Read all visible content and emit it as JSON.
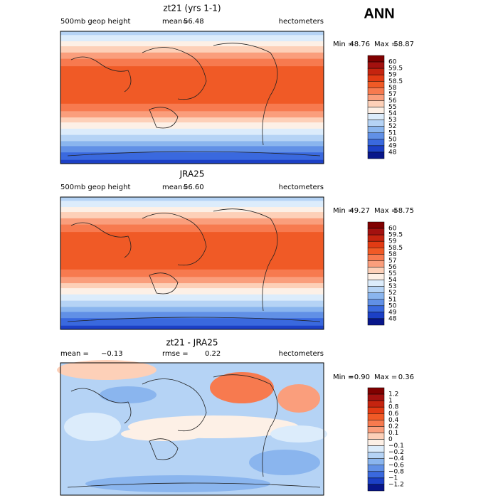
{
  "header": {
    "label": "ANN"
  },
  "panels": [
    {
      "title": "zt21 (yrs 1-1)",
      "left": "500mb geop height",
      "mean_label": "mean=",
      "mean": "56.48",
      "units": "hectometers",
      "min_label": "Min =",
      "min": "48.76",
      "max_label": "Max =",
      "max": "58.87",
      "colorbar": {
        "labels": [
          "60",
          "59.5",
          "59",
          "58.5",
          "58",
          "57",
          "56",
          "55",
          "54",
          "53",
          "52",
          "51",
          "50",
          "49",
          "48"
        ],
        "colors": [
          "#800000",
          "#a3110f",
          "#c5240f",
          "#e23b14",
          "#f05a26",
          "#f77a4f",
          "#fa9e7c",
          "#fdd0b8",
          "#fdf0e6",
          "#dcecfb",
          "#b5d3f5",
          "#8ab5ee",
          "#6190e6",
          "#3a69de",
          "#1c40c6",
          "#08168a"
        ]
      }
    },
    {
      "title": "JRA25",
      "left": "500mb geop height",
      "mean_label": "mean=",
      "mean": "56.60",
      "units": "hectometers",
      "min_label": "Min =",
      "min": "49.27",
      "max_label": "Max =",
      "max": "58.75",
      "colorbar": {
        "labels": [
          "60",
          "59.5",
          "59",
          "58.5",
          "58",
          "57",
          "56",
          "55",
          "54",
          "53",
          "52",
          "51",
          "50",
          "49",
          "48"
        ],
        "colors": [
          "#800000",
          "#a3110f",
          "#c5240f",
          "#e23b14",
          "#f05a26",
          "#f77a4f",
          "#fa9e7c",
          "#fdd0b8",
          "#fdf0e6",
          "#dcecfb",
          "#b5d3f5",
          "#8ab5ee",
          "#6190e6",
          "#3a69de",
          "#1c40c6",
          "#08168a"
        ]
      }
    },
    {
      "title": "zt21 - JRA25",
      "left_label": "mean =",
      "left_value": "−0.13",
      "mid_label": "rmse =",
      "mid_value": "0.22",
      "units": "hectometers",
      "min_label": "Min =",
      "min": "−0.90",
      "max_label": "Max =",
      "max": "0.36",
      "colorbar": {
        "labels": [
          "1.2",
          "1",
          "0.8",
          "0.6",
          "0.4",
          "0.2",
          "0.1",
          "0",
          "−0.1",
          "−0.2",
          "−0.4",
          "−0.6",
          "−0.8",
          "−1",
          "−1.2"
        ],
        "colors": [
          "#800000",
          "#a3110f",
          "#c5240f",
          "#e23b14",
          "#f05a26",
          "#f77a4f",
          "#fa9e7c",
          "#fdd0b8",
          "#fdf0e6",
          "#dcecfb",
          "#b5d3f5",
          "#8ab5ee",
          "#6190e6",
          "#3a69de",
          "#1c40c6",
          "#08168a"
        ]
      }
    }
  ]
}
